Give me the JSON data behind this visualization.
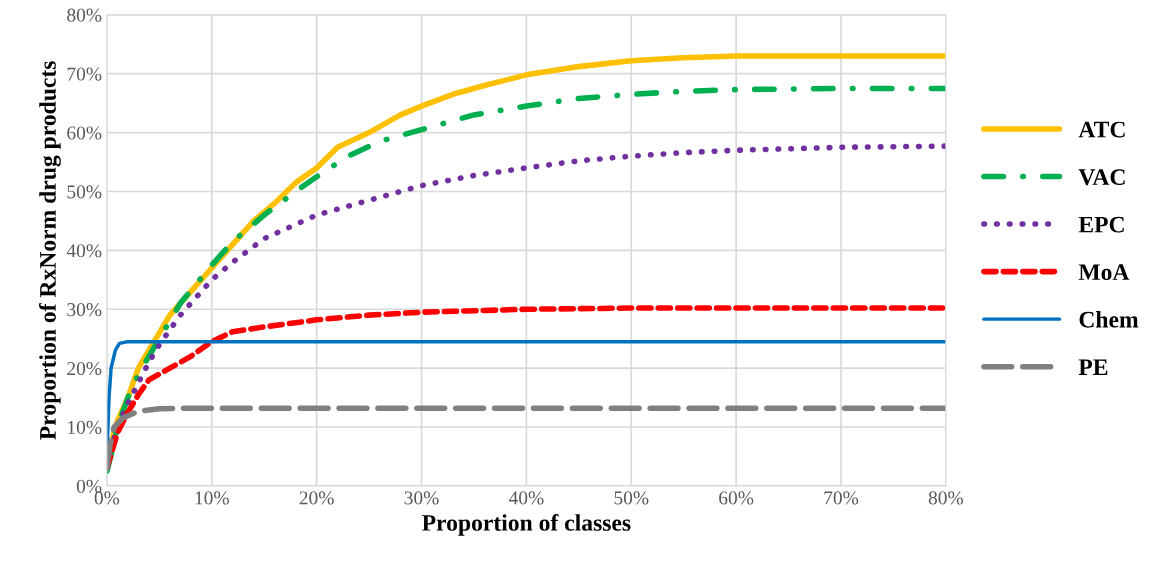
{
  "chart_data": {
    "type": "line",
    "xlabel": "Proportion of classes",
    "ylabel": "Proportion of RxNorm drug products",
    "xlim": [
      0,
      80
    ],
    "ylim": [
      0,
      80
    ],
    "xticks": [
      {
        "value": 0,
        "label": "0%"
      },
      {
        "value": 10,
        "label": "10%"
      },
      {
        "value": 20,
        "label": "20%"
      },
      {
        "value": 30,
        "label": "30%"
      },
      {
        "value": 40,
        "label": "40%"
      },
      {
        "value": 50,
        "label": "50%"
      },
      {
        "value": 60,
        "label": "60%"
      },
      {
        "value": 70,
        "label": "70%"
      },
      {
        "value": 80,
        "label": "80%"
      }
    ],
    "yticks": [
      {
        "value": 0,
        "label": "0%"
      },
      {
        "value": 10,
        "label": "10%"
      },
      {
        "value": 20,
        "label": "20%"
      },
      {
        "value": 30,
        "label": "30%"
      },
      {
        "value": 40,
        "label": "40%"
      },
      {
        "value": 50,
        "label": "50%"
      },
      {
        "value": 60,
        "label": "60%"
      },
      {
        "value": 70,
        "label": "70%"
      },
      {
        "value": 80,
        "label": "80%"
      }
    ],
    "grid": true,
    "legend": "right",
    "series": [
      {
        "name": "ATC",
        "color": "#ffc000",
        "line_style": "solid",
        "x": [
          0,
          0.5,
          1,
          2,
          3,
          4,
          5,
          6,
          8,
          10,
          12,
          14,
          16,
          18,
          20,
          22,
          25,
          28,
          30,
          33,
          36,
          40,
          45,
          50,
          55,
          60,
          70,
          80
        ],
        "values": [
          3,
          8,
          11,
          15,
          20,
          23,
          26,
          29,
          33,
          37,
          41,
          45,
          48,
          51.5,
          54,
          57.5,
          60,
          63,
          64.5,
          66.5,
          68,
          69.8,
          71.2,
          72.2,
          72.7,
          73,
          73,
          73
        ]
      },
      {
        "name": "VAC",
        "color": "#00b050",
        "line_style": "dashdot",
        "x": [
          0,
          0.5,
          1,
          2,
          3,
          5,
          7,
          10,
          12,
          15,
          18,
          20,
          23,
          26,
          30,
          35,
          40,
          45,
          50,
          55,
          60,
          70,
          80
        ],
        "values": [
          2.5,
          6,
          10,
          15,
          19,
          25,
          31,
          37.5,
          41.5,
          46,
          50,
          52.5,
          56,
          58.5,
          60.5,
          63,
          64.5,
          65.8,
          66.5,
          67,
          67.3,
          67.5,
          67.5
        ]
      },
      {
        "name": "EPC",
        "color": "#7030a0",
        "line_style": "dotted",
        "x": [
          0,
          1,
          2,
          3,
          4,
          5,
          7,
          10,
          12,
          15,
          20,
          25,
          30,
          35,
          40,
          45,
          50,
          55,
          60,
          70,
          80
        ],
        "values": [
          4,
          10,
          14,
          17.5,
          21,
          24,
          29,
          35,
          38,
          42,
          46,
          48.5,
          51,
          52.7,
          54,
          55.2,
          56,
          56.6,
          57,
          57.5,
          57.7
        ]
      },
      {
        "name": "MoA",
        "color": "#ff0000",
        "line_style": "dashed",
        "x": [
          0,
          0.5,
          1,
          2,
          3,
          4,
          6,
          8,
          10,
          12,
          15,
          20,
          25,
          30,
          40,
          50,
          60,
          80
        ],
        "values": [
          3,
          6,
          9,
          12.5,
          15.5,
          18,
          20,
          22,
          24.5,
          26.2,
          27,
          28.2,
          29,
          29.5,
          30,
          30.2,
          30.2,
          30.2
        ]
      },
      {
        "name": "Chem",
        "color": "#0070c0",
        "line_style": "solid",
        "x": [
          0,
          0.2,
          0.4,
          0.8,
          1.2,
          2,
          80
        ],
        "values": [
          5,
          15,
          20,
          23,
          24.2,
          24.5,
          24.5
        ]
      },
      {
        "name": "PE",
        "color": "#808080",
        "line_style": "longdash",
        "x": [
          0,
          0.3,
          0.7,
          1.5,
          3,
          5,
          7,
          80
        ],
        "values": [
          3,
          7,
          10,
          11.5,
          12.7,
          13.1,
          13.2,
          13.2
        ]
      }
    ]
  }
}
